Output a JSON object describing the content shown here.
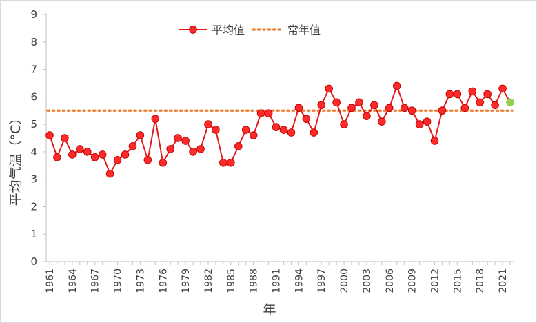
{
  "chart_data": {
    "type": "line",
    "ylabel": "平均气温（°C）",
    "xlabel": "年",
    "ylim": [
      0,
      9
    ],
    "xlim": [
      1961,
      2022
    ],
    "y_ticks": [
      0,
      1,
      2,
      3,
      4,
      5,
      6,
      7,
      8,
      9
    ],
    "x_ticks": [
      1961,
      1964,
      1967,
      1970,
      1973,
      1976,
      1979,
      1982,
      1985,
      1988,
      1991,
      1994,
      1997,
      2000,
      2003,
      2006,
      2009,
      2012,
      2015,
      2018,
      2021
    ],
    "grid": false,
    "legend_position": "top",
    "series": [
      {
        "name": "平均值",
        "color": "#e31a1c",
        "marker_fill": "#ff2b2b",
        "highlight_color": "#92d050",
        "x": [
          1961,
          1962,
          1963,
          1964,
          1965,
          1966,
          1967,
          1968,
          1969,
          1970,
          1971,
          1972,
          1973,
          1974,
          1975,
          1976,
          1977,
          1978,
          1979,
          1980,
          1981,
          1982,
          1983,
          1984,
          1985,
          1986,
          1987,
          1988,
          1989,
          1990,
          1991,
          1992,
          1993,
          1994,
          1995,
          1996,
          1997,
          1998,
          1999,
          2000,
          2001,
          2002,
          2003,
          2004,
          2005,
          2006,
          2007,
          2008,
          2009,
          2010,
          2011,
          2012,
          2013,
          2014,
          2015,
          2016,
          2017,
          2018,
          2019,
          2020,
          2021,
          2022
        ],
        "values": [
          4.6,
          3.8,
          4.5,
          3.9,
          4.1,
          4.0,
          3.8,
          3.9,
          3.2,
          3.7,
          3.9,
          4.2,
          4.6,
          3.7,
          5.2,
          3.6,
          4.1,
          4.5,
          4.4,
          4.0,
          4.1,
          5.0,
          4.8,
          3.6,
          3.6,
          4.2,
          4.8,
          4.6,
          5.4,
          5.4,
          4.9,
          4.8,
          4.7,
          5.6,
          5.2,
          4.7,
          5.7,
          6.3,
          5.8,
          5.0,
          5.6,
          5.8,
          5.3,
          5.7,
          5.1,
          5.6,
          6.4,
          5.6,
          5.5,
          5.0,
          5.1,
          4.4,
          5.5,
          6.1,
          6.1,
          5.6,
          6.2,
          5.8,
          6.1,
          5.7,
          6.3,
          5.8
        ]
      },
      {
        "name": "常年值",
        "color": "#ed7d31",
        "style": "dotted",
        "values": [
          5.5
        ]
      }
    ]
  }
}
